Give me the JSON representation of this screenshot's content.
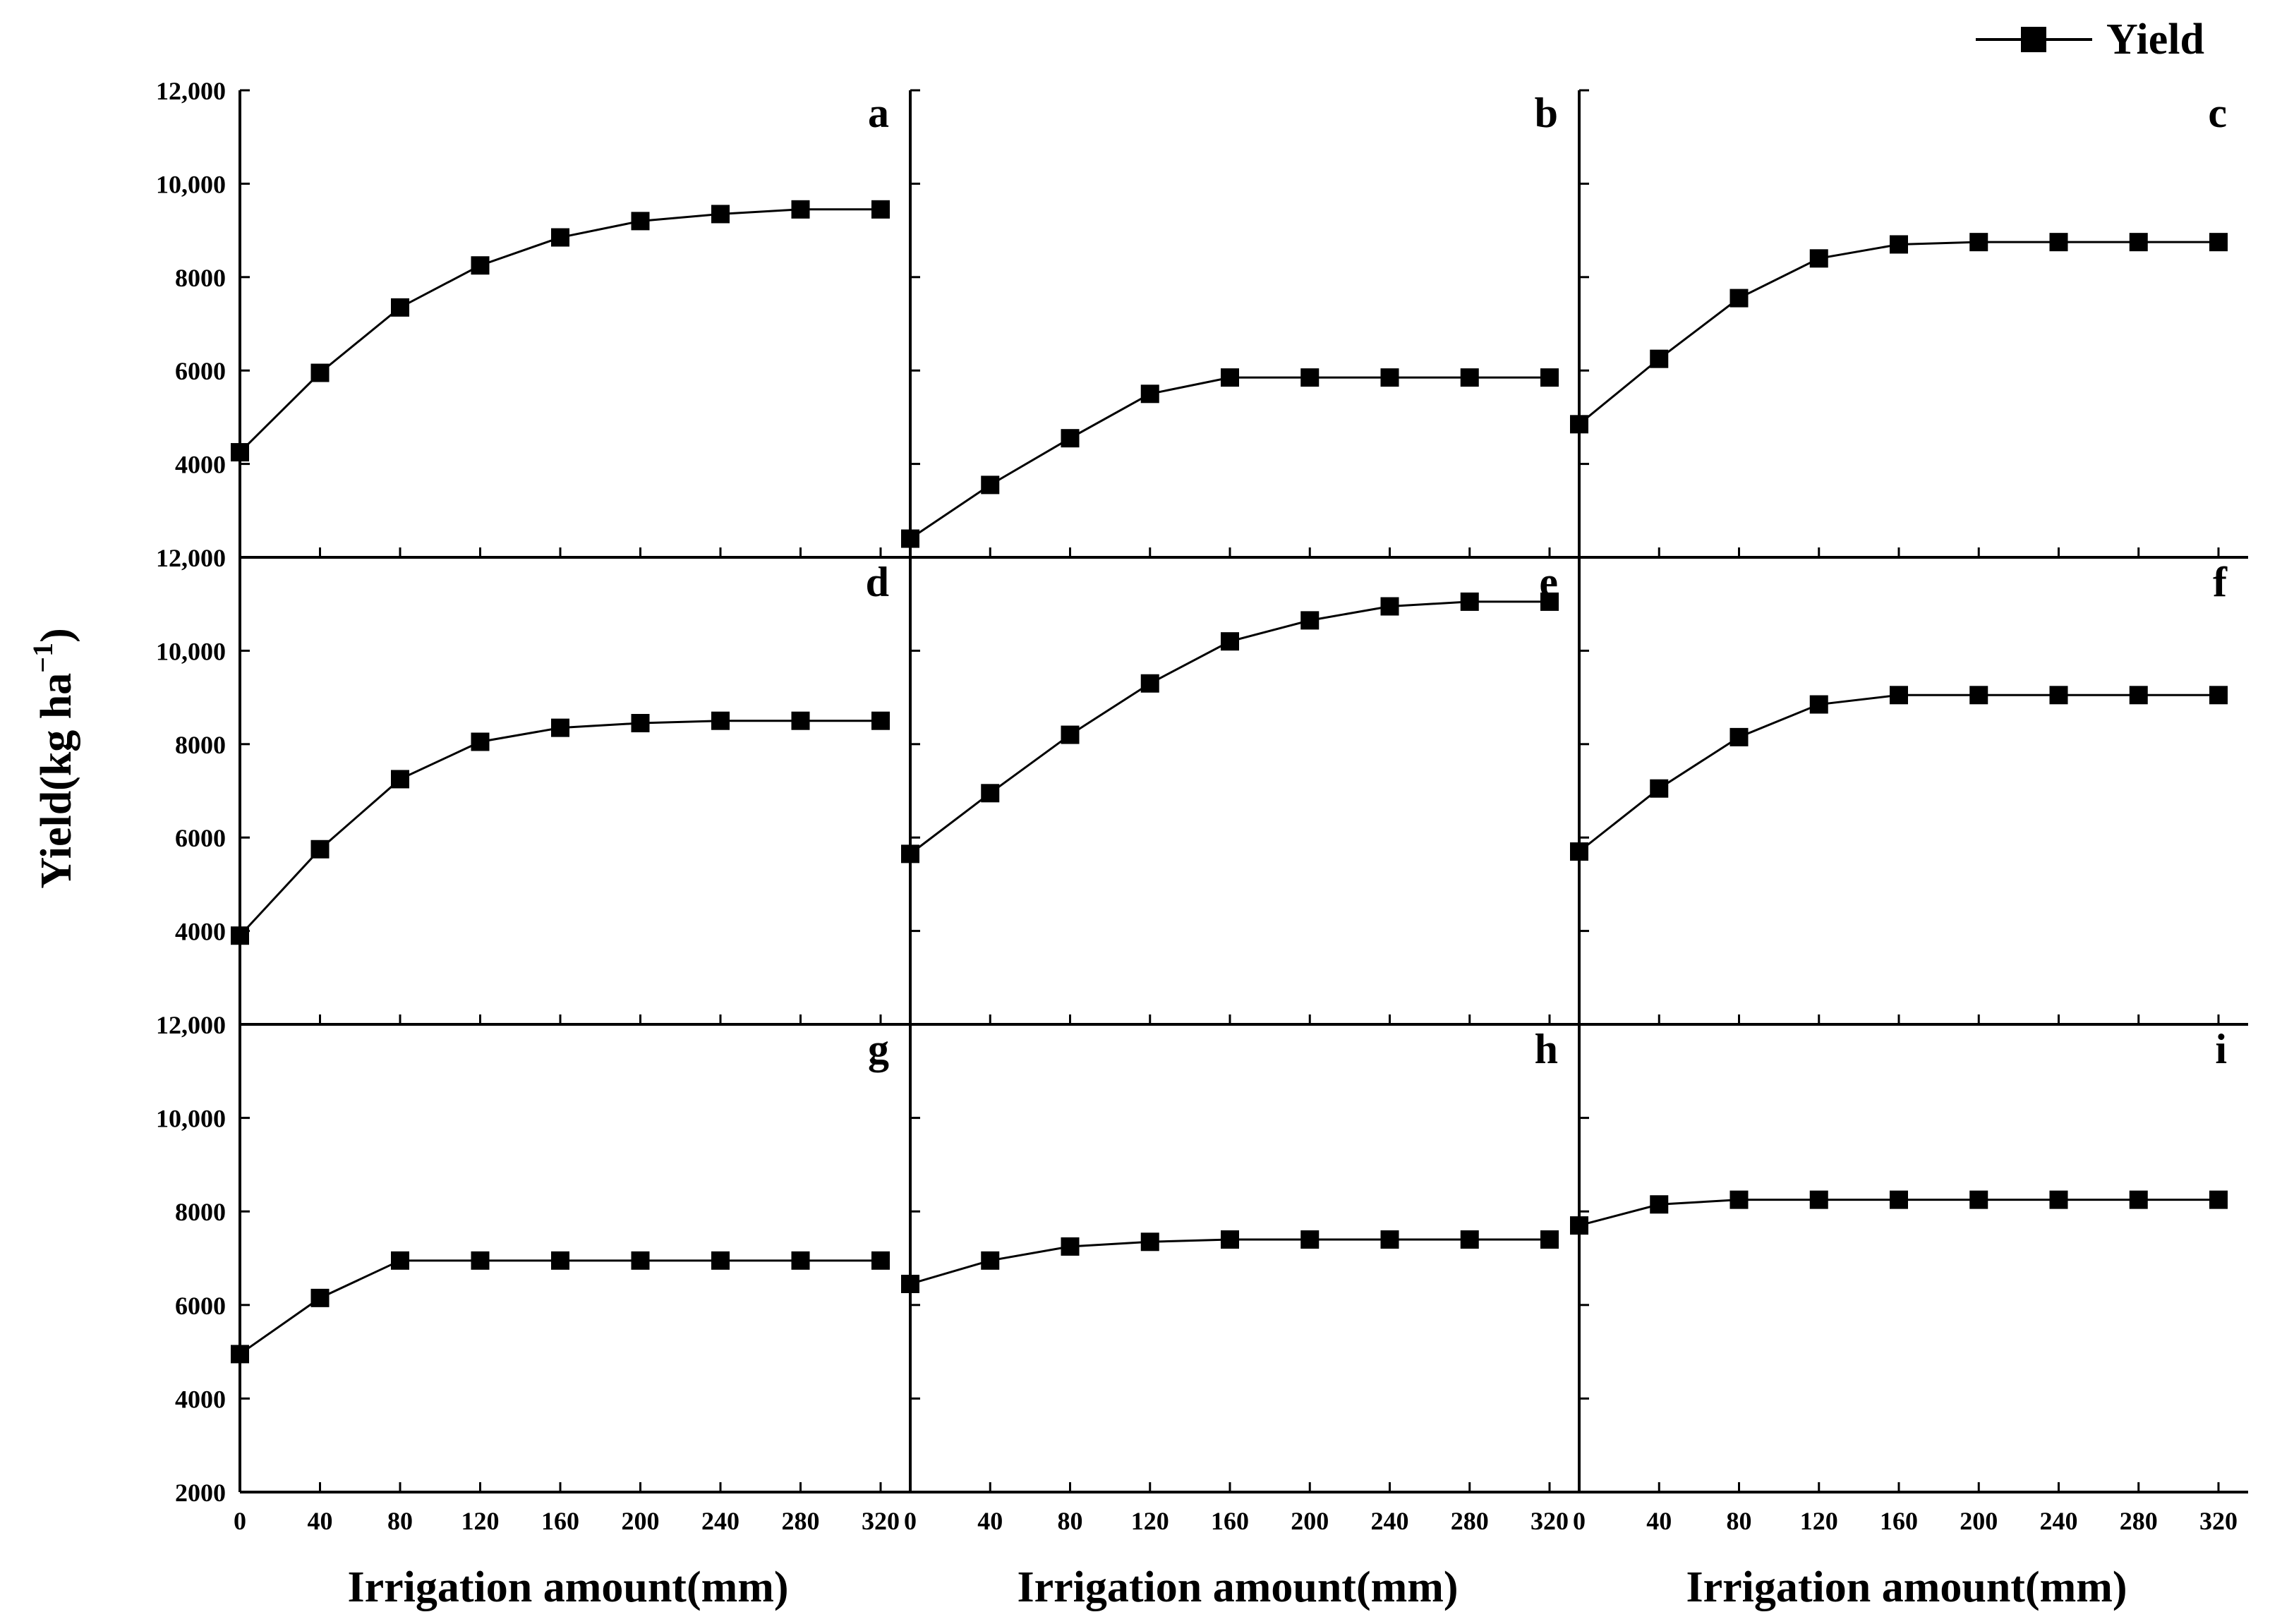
{
  "chart_data": {
    "type": "line",
    "ylabel": "Yield(kg ha",
    "ylabel_sup": "−1",
    "ylabel_close": ")",
    "xlabel": "Irrigation amount(mm)",
    "legend": {
      "label": "Yield",
      "placement": "top-right",
      "marker": "square"
    },
    "x": [
      0,
      40,
      80,
      120,
      160,
      200,
      240,
      280,
      320
    ],
    "x_ticks": [
      "0",
      "40",
      "80",
      "120",
      "160",
      "200",
      "240",
      "280",
      "320"
    ],
    "y_ticks_top": [
      "12,000",
      "10,000",
      "8000",
      "6000",
      "4000"
    ],
    "y_ticks_bottom": [
      "12,000",
      "10,000",
      "8000",
      "6000",
      "4000",
      "2000"
    ],
    "ylim": [
      2000,
      12000
    ],
    "panels": [
      {
        "label": "a",
        "values": [
          4250,
          5950,
          7350,
          8250,
          8850,
          9200,
          9350,
          9450,
          9450
        ]
      },
      {
        "label": "b",
        "values": [
          2400,
          3550,
          4550,
          5500,
          5850,
          5850,
          5850,
          5850,
          5850
        ]
      },
      {
        "label": "c",
        "values": [
          4850,
          6250,
          7550,
          8400,
          8700,
          8750,
          8750,
          8750,
          8750
        ]
      },
      {
        "label": "d",
        "values": [
          3900,
          5750,
          7250,
          8050,
          8350,
          8450,
          8500,
          8500,
          8500
        ]
      },
      {
        "label": "e",
        "values": [
          5650,
          6950,
          8200,
          9300,
          10200,
          10650,
          10950,
          11050,
          11050
        ]
      },
      {
        "label": "f",
        "values": [
          5700,
          7050,
          8150,
          8850,
          9050,
          9050,
          9050,
          9050,
          9050
        ]
      },
      {
        "label": "g",
        "values": [
          4950,
          6150,
          6950,
          6950,
          6950,
          6950,
          6950,
          6950,
          6950
        ]
      },
      {
        "label": "h",
        "values": [
          6450,
          6950,
          7250,
          7350,
          7400,
          7400,
          7400,
          7400,
          7400
        ]
      },
      {
        "label": "i",
        "values": [
          7700,
          8150,
          8250,
          8250,
          8250,
          8250,
          8250,
          8250,
          8250
        ]
      }
    ],
    "colors": {
      "line": "#000000",
      "marker": "#000000",
      "axis": "#000000"
    }
  }
}
